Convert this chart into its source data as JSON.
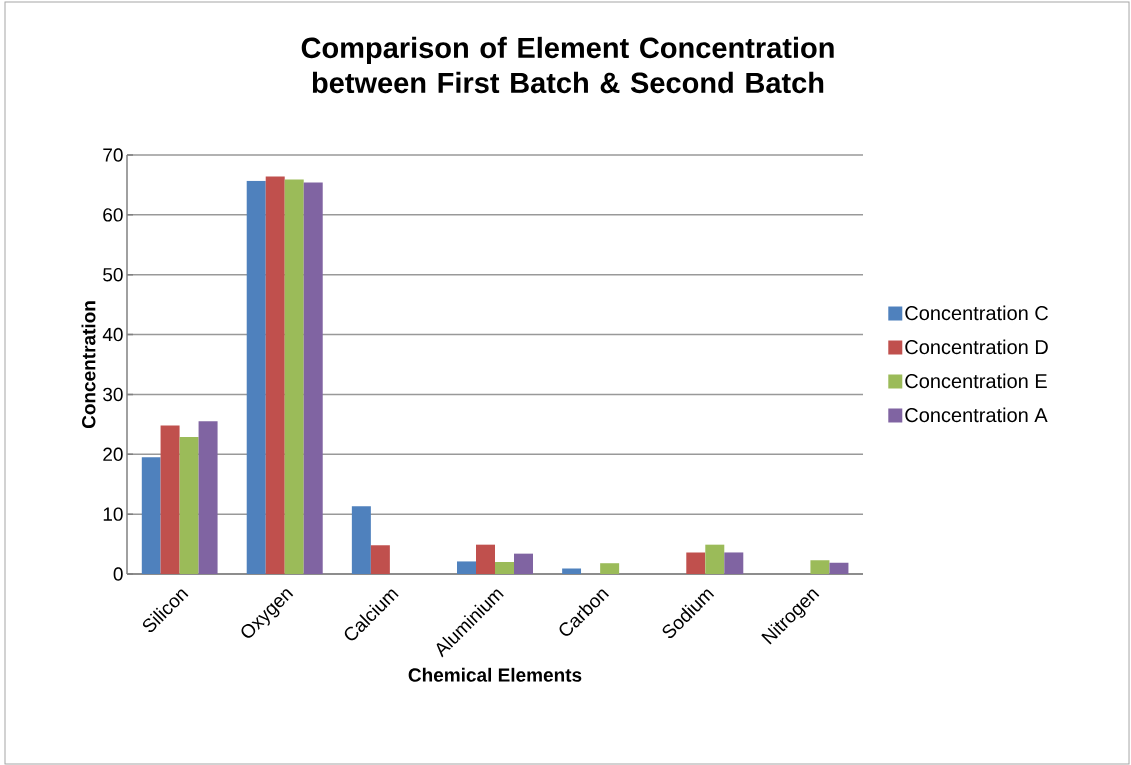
{
  "chart_data": {
    "type": "bar",
    "title": "Comparison of Element Concentration between First Batch & Second Batch",
    "xlabel": "Chemical Elements",
    "ylabel": "Concentration",
    "categories": [
      "Silicon",
      "Oxygen",
      "Calcium",
      "Aluminium",
      "Carbon",
      "Sodium",
      "Nitrogen"
    ],
    "series": [
      {
        "name": "Concentration C",
        "color": "#4f81bd",
        "values": [
          19.5,
          65.7,
          11.3,
          2.1,
          0.9,
          null,
          null
        ]
      },
      {
        "name": "Concentration D",
        "color": "#c0504d",
        "values": [
          24.8,
          66.4,
          4.8,
          4.9,
          null,
          3.6,
          null
        ]
      },
      {
        "name": "Concentration E",
        "color": "#9bbb59",
        "values": [
          22.9,
          65.9,
          null,
          2.0,
          1.8,
          4.9,
          2.3
        ]
      },
      {
        "name": "Concentration A",
        "color": "#8064a2",
        "values": [
          25.5,
          65.4,
          null,
          3.4,
          null,
          3.6,
          1.9
        ]
      }
    ],
    "ylim": [
      0,
      70
    ],
    "yticks": [
      0,
      10,
      20,
      30,
      40,
      50,
      60,
      70
    ],
    "grid": "y",
    "legend": "right"
  }
}
